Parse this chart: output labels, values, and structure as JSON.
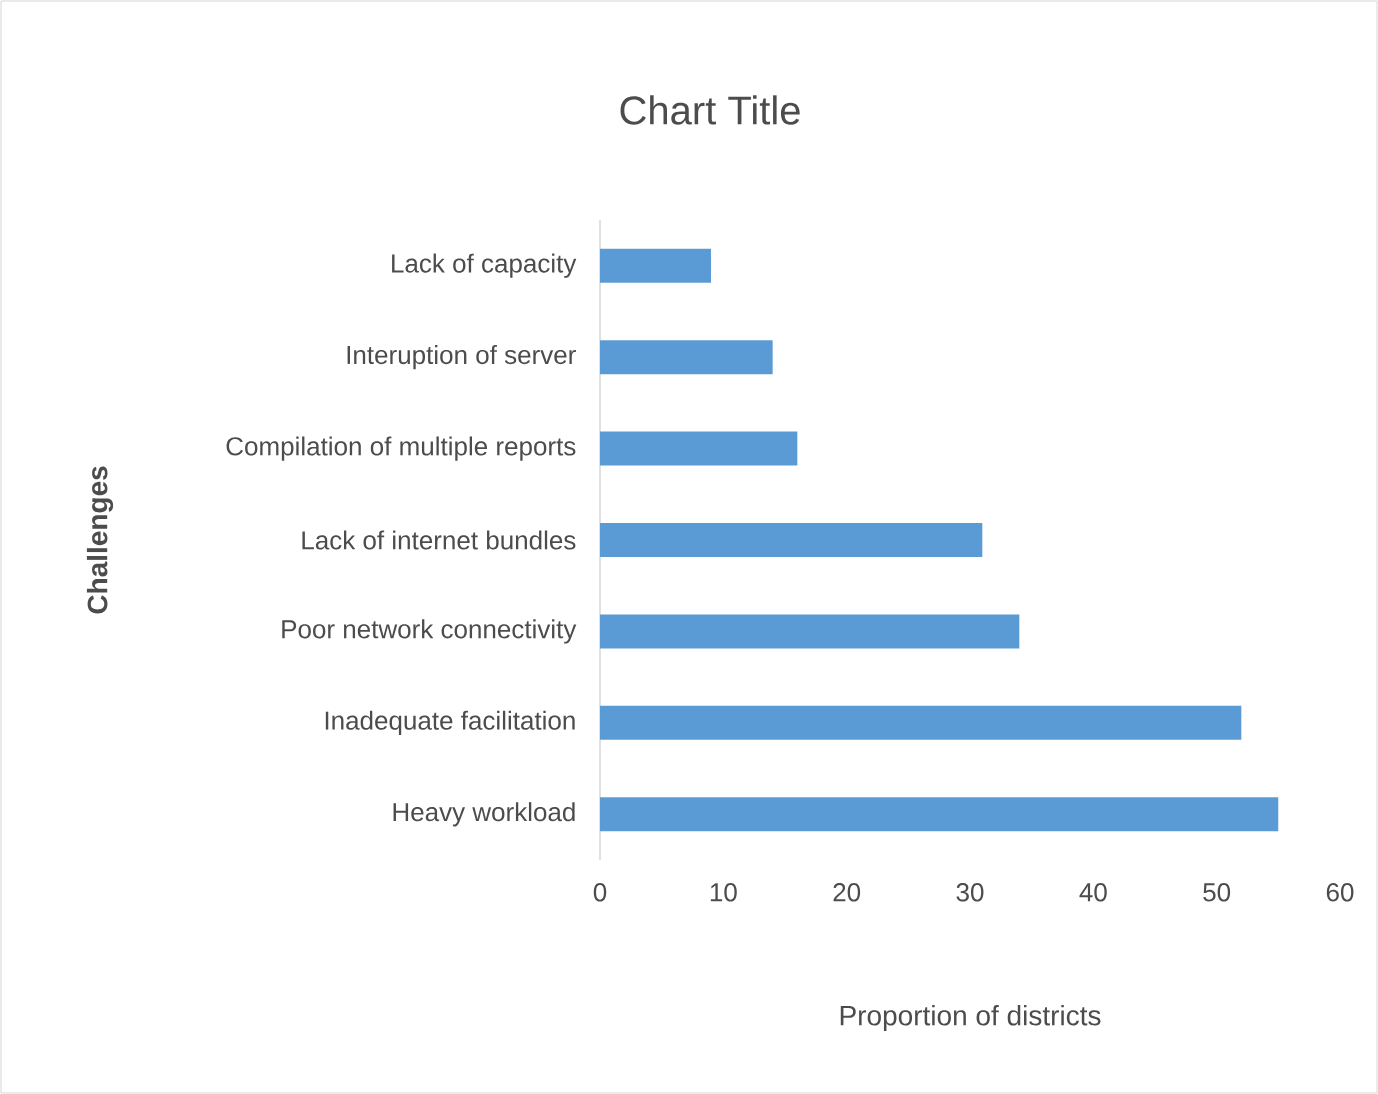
{
  "chart_data": {
    "type": "bar",
    "orientation": "horizontal",
    "title": "Chart Title",
    "xlabel": "Proportion of districts",
    "ylabel": "Challenges",
    "categories": [
      "Lack of capacity",
      "Interuption of server",
      "Compilation of multiple reports",
      "Lack of internet  bundles",
      "Poor network connectivity",
      "Inadequate facilitation",
      "Heavy workload"
    ],
    "values": [
      9,
      14,
      16,
      31,
      34,
      52,
      55
    ],
    "color": "#5b9bd5",
    "xlim": [
      0,
      60
    ],
    "xticks": [
      0,
      10,
      20,
      30,
      40,
      50,
      60
    ]
  }
}
